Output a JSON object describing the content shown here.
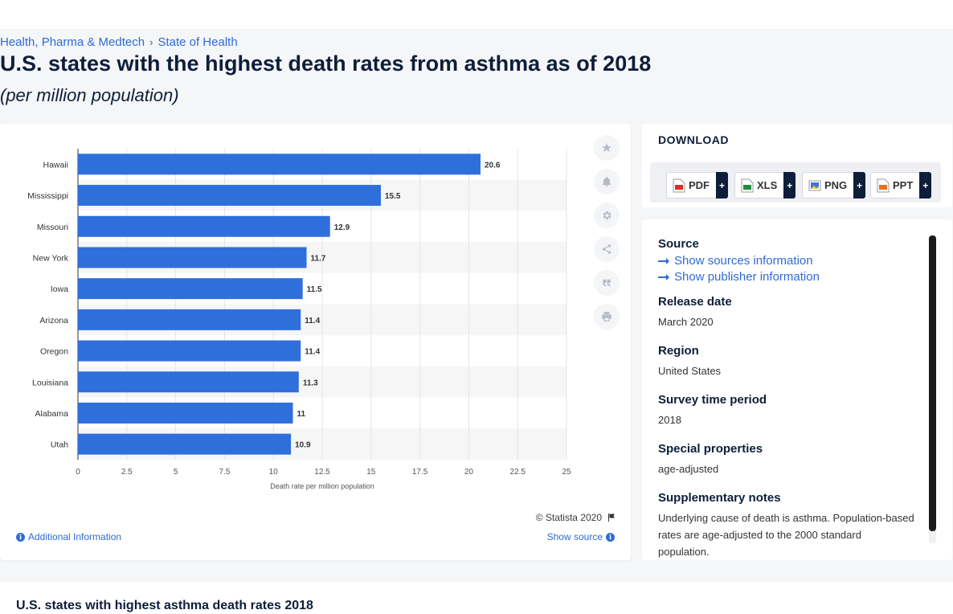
{
  "breadcrumb": {
    "items": [
      "Health, Pharma & Medtech",
      "State of Health"
    ],
    "separator": "›"
  },
  "page": {
    "title": "U.S. states with the highest death rates from asthma as of 2018",
    "subtitle": "(per million population)"
  },
  "chart": {
    "copyright": "© Statista 2020",
    "additional_info": "Additional Information",
    "show_source": "Show source"
  },
  "chart_data": {
    "type": "bar",
    "orientation": "horizontal",
    "categories": [
      "Hawaii",
      "Mississippi",
      "Missouri",
      "New York",
      "Iowa",
      "Arizona",
      "Oregon",
      "Louisiana",
      "Alabama",
      "Utah"
    ],
    "values": [
      20.6,
      15.5,
      12.9,
      11.7,
      11.5,
      11.4,
      11.4,
      11.3,
      11,
      10.9
    ],
    "value_labels": [
      "20.6",
      "15.5",
      "12.9",
      "11.7",
      "11.5",
      "11.4",
      "11.4",
      "11.3",
      "11",
      "10.9"
    ],
    "xlabel": "Death rate per million population",
    "xlim": [
      0,
      25
    ],
    "xticks": [
      0,
      2.5,
      5,
      7.5,
      10,
      12.5,
      15,
      17.5,
      20,
      22.5,
      25
    ],
    "xtick_labels": [
      "0",
      "2.5",
      "5",
      "7.5",
      "10",
      "12.5",
      "15",
      "17.5",
      "20",
      "22.5",
      "25"
    ],
    "grid": true,
    "bar_color": "#2f6fdc"
  },
  "side_tools": [
    "star-icon",
    "bell-icon",
    "gear-icon",
    "share-icon",
    "quote-icon",
    "print-icon"
  ],
  "download": {
    "title": "DOWNLOAD",
    "formats": [
      {
        "label": "PDF",
        "icon": "pdf-file-icon",
        "color": "#d93025"
      },
      {
        "label": "XLS",
        "icon": "xls-file-icon",
        "color": "#1e8e3e"
      },
      {
        "label": "PNG",
        "icon": "png-file-icon",
        "color": "#3b78d8"
      },
      {
        "label": "PPT",
        "icon": "ppt-file-icon",
        "color": "#e8711a"
      }
    ],
    "plus": "+"
  },
  "meta": {
    "source_label": "Source",
    "show_sources": "Show sources information",
    "show_publisher": "Show publisher information",
    "release_label": "Release date",
    "release_value": "March 2020",
    "region_label": "Region",
    "region_value": "United States",
    "survey_label": "Survey time period",
    "survey_value": "2018",
    "special_label": "Special properties",
    "special_value": "age-adjusted",
    "notes_label": "Supplementary notes",
    "notes_value": "Underlying cause of death is asthma. Population-based rates are age-adjusted to the 2000 standard population."
  },
  "bottom": {
    "title": "U.S. states with highest asthma death rates 2018"
  }
}
